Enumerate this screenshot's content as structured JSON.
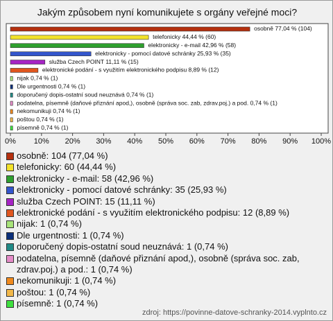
{
  "chart_data": {
    "type": "bar",
    "orientation": "horizontal",
    "title": "Jakým způsobem nyní komunikujete s orgány veřejné moci?",
    "categories": [
      "osobně",
      "telefonicky",
      "elektronicky - e-mail",
      "elektronicky - pomocí datové schránky",
      "služba Czech POINT",
      "elektronické podání - s využitím elektronického podpisu",
      "nijak",
      "Dle urgentnosti",
      "doporučený dopis-ostatní soud neuznává",
      "podatelna, písemně (daňové přiznání apod,),  osobně (správa soc. zab, zdrav.poj.) a pod.",
      "nekomunikuji",
      "poštou",
      "písemně"
    ],
    "values": [
      77.04,
      44.44,
      42.96,
      25.93,
      11.11,
      8.89,
      0.74,
      0.74,
      0.74,
      0.74,
      0.74,
      0.74,
      0.74
    ],
    "value_labels": [
      "osobně 77,04 % (104)",
      "telefonicky 44,44 % (60)",
      "elektronicky - e-mail 42,96 % (58)",
      "elektronicky - pomocí datové schránky 25,93 % (35)",
      "služba Czech POINT 11,11 % (15)",
      "elektronické podání - s využitím elektronického podpisu 8,89 % (12)",
      "nijak 0,74 % (1)",
      "Dle urgentnosti 0,74 % (1)",
      "doporučený dopis-ostatní soud neuznává 0,74 % (1)",
      "podatelna, písemně (daňové přiznání apod,),  osobně (správa soc. zab, zdrav.poj.) a pod. 0,74 % (1)",
      "nekomunikuji 0,74 % (1)",
      "poštou 0,74 % (1)",
      "písemně 0,74 % (1)"
    ],
    "legend_labels": [
      "osobně: 104 (77,04 %)",
      "telefonicky: 60 (44,44 %)",
      "elektronicky - e-mail: 58 (42,96 %)",
      "elektronicky - pomocí datové schránky: 35 (25,93 %)",
      "služba Czech POINT: 15 (11,11 %)",
      "elektronické podání - s využitím elektronického podpisu: 12 (8,89 %)",
      "nijak: 1 (0,74 %)",
      "Dle urgentnosti: 1 (0,74 %)",
      "doporučený dopis-ostatní soud neuznává: 1 (0,74 %)",
      "podatelna, písemně (daňové přiznání apod,),  osobně (správa soc. zab, zdrav.poj.) a pod.: 1 (0,74 %)",
      "nekomunikuji: 1 (0,74 %)",
      "poštou: 1 (0,74 %)",
      "písemně: 1 (0,74 %)"
    ],
    "colors": [
      "#b5300f",
      "#f2e22a",
      "#2fa02f",
      "#3355cc",
      "#a624c4",
      "#e0561e",
      "#a8e47a",
      "#0b2f7a",
      "#208a86",
      "#e58cc8",
      "#f08a1e",
      "#f2b84a",
      "#3fe03f"
    ],
    "xlim": [
      0,
      100
    ],
    "xticks": [
      {
        "value": 0,
        "label": "0%"
      },
      {
        "value": 10,
        "label": "10%"
      },
      {
        "value": 20,
        "label": "20%"
      },
      {
        "value": 30,
        "label": "30%"
      },
      {
        "value": 40,
        "label": "40%"
      },
      {
        "value": 50,
        "label": "50%"
      },
      {
        "value": 60,
        "label": "60%"
      },
      {
        "value": 70,
        "label": "70%"
      },
      {
        "value": 80,
        "label": "80%"
      },
      {
        "value": 90,
        "label": "90%"
      },
      {
        "value": 100,
        "label": "100%"
      }
    ],
    "source": "zdroj: https://povinne-datove-schranky-2014.vyplnto.cz"
  }
}
